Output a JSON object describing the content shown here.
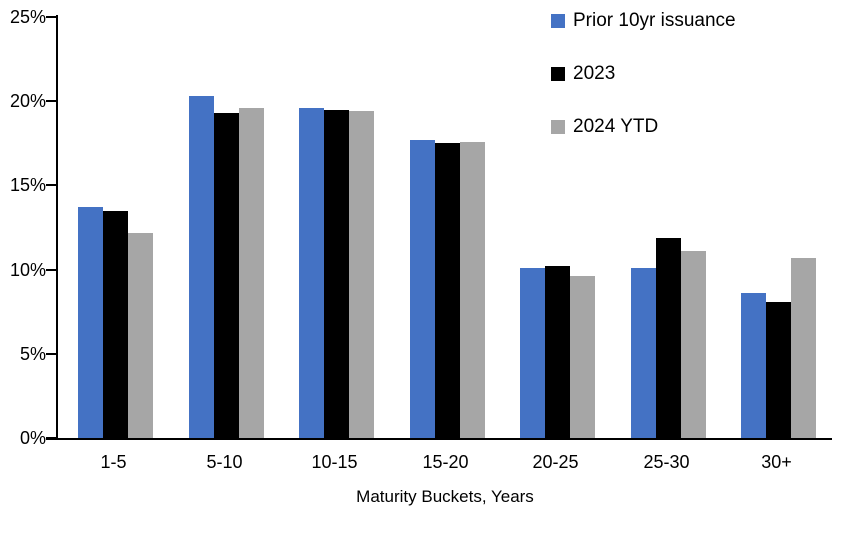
{
  "chart_data": {
    "type": "bar",
    "title": "",
    "xlabel": "Maturity Buckets, Years",
    "ylabel": "",
    "categories": [
      "1-5",
      "5-10",
      "10-15",
      "15-20",
      "20-25",
      "25-30",
      "30+"
    ],
    "series": [
      {
        "name": "Prior 10yr issuance",
        "color": "#4472C4",
        "values": [
          13.7,
          20.3,
          19.6,
          17.7,
          10.1,
          10.1,
          8.6
        ]
      },
      {
        "name": "2023",
        "color": "#000000",
        "values": [
          13.5,
          19.3,
          19.5,
          17.5,
          10.2,
          11.9,
          8.1
        ]
      },
      {
        "name": "2024 YTD",
        "color": "#A6A6A6",
        "values": [
          12.2,
          19.6,
          19.4,
          17.6,
          9.6,
          11.1,
          10.7
        ]
      }
    ],
    "ylim": [
      0,
      25
    ],
    "y_ticks": [
      0,
      5,
      10,
      15,
      20,
      25
    ],
    "y_tick_suffix": "%",
    "grid": false,
    "legend_position": "top-right",
    "axis_color": "#000000",
    "background_color": "#FFFFFF"
  }
}
